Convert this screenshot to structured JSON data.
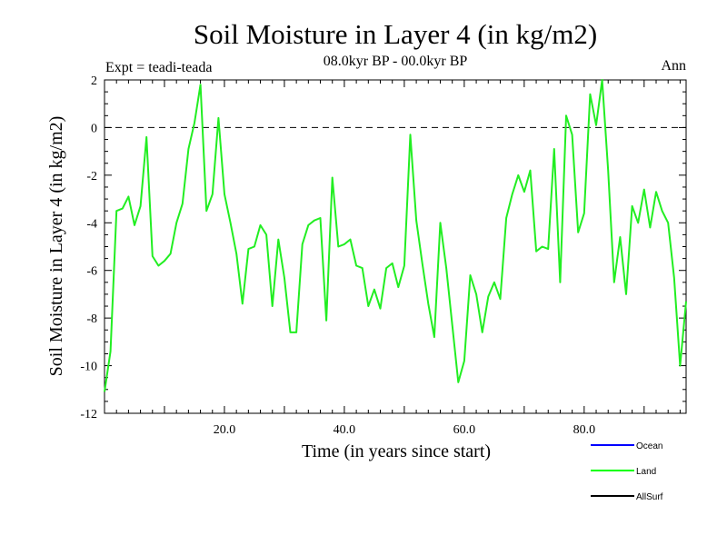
{
  "chart_data": {
    "type": "line",
    "title": "Soil Moisture in Layer 4 (in kg/m2)",
    "subtitle": "08.0kyr BP - 00.0kyr BP",
    "left_annotation": "Expt = teadi-teada",
    "right_annotation": "Ann",
    "xlabel": "Time (in years since start)",
    "ylabel": "Soil Moisture in Layer 4 (in kg/m2)",
    "xlim": [
      0,
      97
    ],
    "ylim": [
      -12,
      2
    ],
    "x_ticks": [
      20,
      40,
      60,
      80
    ],
    "x_tick_labels": [
      "20.0",
      "40.0",
      "60.0",
      "80.0"
    ],
    "y_ticks": [
      -12,
      -10,
      -8,
      -6,
      -4,
      -2,
      0,
      2
    ],
    "y_tick_labels": [
      "-12",
      "-10",
      "-8",
      "-6",
      "-4",
      "-2",
      "0",
      "2"
    ],
    "zero_line": {
      "value": 0,
      "style": "dashed",
      "color": "#000000"
    },
    "legend": [
      {
        "label": "Ocean",
        "color": "#0000ff"
      },
      {
        "label": "Land",
        "color": "#00ff00"
      },
      {
        "label": "AllSurf",
        "color": "#000000"
      }
    ],
    "series": [
      {
        "name": "Land",
        "color": "#22ee22",
        "x": [
          0,
          1,
          2,
          3,
          4,
          5,
          6,
          7,
          8,
          9,
          10,
          11,
          12,
          13,
          14,
          15,
          16,
          17,
          18,
          19,
          20,
          21,
          22,
          23,
          24,
          25,
          26,
          27,
          28,
          29,
          30,
          31,
          32,
          33,
          34,
          35,
          36,
          37,
          38,
          39,
          40,
          41,
          42,
          43,
          44,
          45,
          46,
          47,
          48,
          49,
          50,
          51,
          52,
          53,
          54,
          55,
          56,
          57,
          58,
          59,
          60,
          61,
          62,
          63,
          64,
          65,
          66,
          67,
          68,
          69,
          70,
          71,
          72,
          73,
          74,
          75,
          76,
          77,
          78,
          79,
          80,
          81,
          82,
          83,
          84,
          85,
          86,
          87,
          88,
          89,
          90,
          91,
          92,
          93,
          94,
          95,
          96,
          97
        ],
        "values": [
          -11.1,
          -9.4,
          -3.5,
          -3.4,
          -2.9,
          -4.1,
          -3.3,
          -0.4,
          -5.4,
          -5.8,
          -5.6,
          -5.3,
          -4.0,
          -3.2,
          -0.9,
          0.2,
          1.8,
          -3.5,
          -2.8,
          0.4,
          -2.8,
          -4.0,
          -5.3,
          -7.4,
          -5.1,
          -5.0,
          -4.1,
          -4.5,
          -7.5,
          -4.7,
          -6.3,
          -8.6,
          -8.6,
          -4.9,
          -4.1,
          -3.9,
          -3.8,
          -8.1,
          -2.1,
          -5.0,
          -4.9,
          -4.7,
          -5.8,
          -5.9,
          -7.5,
          -6.8,
          -7.6,
          -5.9,
          -5.7,
          -6.7,
          -5.8,
          -0.3,
          -3.9,
          -5.7,
          -7.4,
          -8.8,
          -4.0,
          -5.9,
          -8.3,
          -10.7,
          -9.8,
          -6.2,
          -7.0,
          -8.6,
          -7.1,
          -6.5,
          -7.2,
          -3.8,
          -2.8,
          -2.0,
          -2.7,
          -1.8,
          -5.2,
          -5.0,
          -5.1,
          -0.9,
          -6.5,
          0.5,
          -0.3,
          -4.4,
          -3.6,
          1.4,
          0.1,
          2.0,
          -1.8,
          -6.5,
          -4.6,
          -7.0,
          -3.3,
          -4.0,
          -2.6,
          -4.2,
          -2.7,
          -3.5,
          -4.0,
          -6.3,
          -10.0,
          -7.3
        ]
      }
    ]
  }
}
